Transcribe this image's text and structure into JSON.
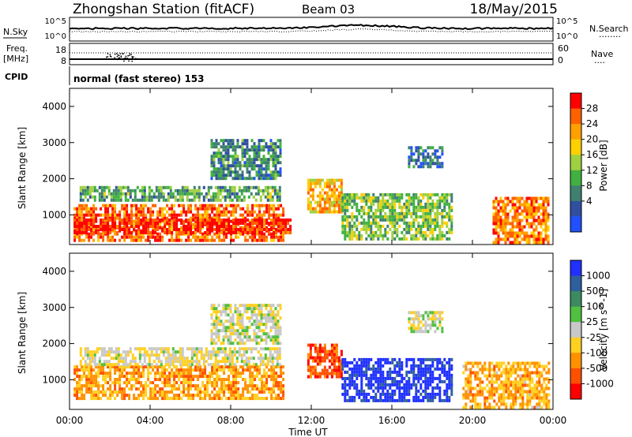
{
  "header": {
    "title": "Zhongshan Station (fitACF)",
    "beam": "Beam 03",
    "date": "18/May/2015"
  },
  "noise_panel": {
    "left_label": "N.Sky",
    "right_label": "N.Search",
    "right_dots": "........",
    "left_ticks": [
      "10^5",
      "10^0"
    ],
    "right_ticks": [
      "10^5",
      "10^0"
    ]
  },
  "freq_panel": {
    "left_label_line1": "Freq.",
    "left_label_line2": "[MHz]",
    "right_label": "Nave",
    "right_dots": "....",
    "left_ticks": [
      "18",
      "8"
    ],
    "right_ticks": [
      "60",
      "0"
    ]
  },
  "cpid_panel": {
    "label": "CPID",
    "text": "normal (fast stereo) 153"
  },
  "range_axis": {
    "label": "Slant Range [km]",
    "ticks": [
      "4000",
      "3000",
      "2000",
      "1000"
    ]
  },
  "time_axis": {
    "label": "Time UT",
    "ticks": [
      "00:00",
      "04:00",
      "08:00",
      "12:00",
      "16:00",
      "20:00",
      "00:00"
    ]
  },
  "power_colorbar": {
    "label": "Power [dB]",
    "ticks": [
      "28",
      "24",
      "20",
      "16",
      "12",
      "8",
      "4"
    ],
    "colors": [
      "#ff0000",
      "#ff6000",
      "#ffa000",
      "#ffd000",
      "#a0d040",
      "#40b040",
      "#408070",
      "#304fa0",
      "#2050ff"
    ]
  },
  "velocity_colorbar": {
    "label": "Velocity [m s^-1]",
    "ticks": [
      "1000",
      "500",
      "100",
      "25",
      "-25",
      "-100",
      "-500",
      "-1000"
    ],
    "colors": [
      "#2030ff",
      "#2e5f9e",
      "#3c8a60",
      "#50c040",
      "#c8c8c8",
      "#ffd020",
      "#ff9000",
      "#ff5000",
      "#ff0000"
    ]
  },
  "chart_data": {
    "type": "heatmap",
    "x_range_hours": [
      0,
      24
    ],
    "y_range_km": [
      180,
      4500
    ],
    "panels": [
      {
        "name": "Power",
        "units": "dB",
        "color_range": [
          0,
          32
        ],
        "regions": [
          {
            "t0": 0.2,
            "t1": 10.6,
            "r0": 300,
            "r1": 1300,
            "value": 26
          },
          {
            "t0": 0.2,
            "t1": 11.0,
            "r0": 500,
            "r1": 900,
            "value": 30
          },
          {
            "t0": 0.5,
            "t1": 10.5,
            "r0": 1400,
            "r1": 1800,
            "value": 12
          },
          {
            "t0": 7.0,
            "t1": 10.5,
            "r0": 2000,
            "r1": 3100,
            "value": 9
          },
          {
            "t0": 11.8,
            "t1": 13.5,
            "r0": 1100,
            "r1": 2000,
            "value": 22
          },
          {
            "t0": 13.5,
            "t1": 19.0,
            "r0": 300,
            "r1": 1600,
            "value": 14
          },
          {
            "t0": 16.8,
            "t1": 18.5,
            "r0": 2300,
            "r1": 2900,
            "value": 7
          },
          {
            "t0": 21.0,
            "t1": 23.8,
            "r0": 200,
            "r1": 1500,
            "value": 25
          }
        ]
      },
      {
        "name": "Velocity",
        "units": "m s^-1",
        "color_range": [
          -1000,
          1000
        ],
        "regions": [
          {
            "t0": 0.2,
            "t1": 10.6,
            "r0": 500,
            "r1": 1400,
            "value": -400
          },
          {
            "t0": 0.5,
            "t1": 10.5,
            "r0": 1400,
            "r1": 1900,
            "value": -80
          },
          {
            "t0": 7.0,
            "t1": 10.5,
            "r0": 2000,
            "r1": 3100,
            "value": -20
          },
          {
            "t0": 11.8,
            "t1": 13.5,
            "r0": 1100,
            "r1": 2000,
            "value": -700
          },
          {
            "t0": 13.5,
            "t1": 19.0,
            "r0": 400,
            "r1": 1600,
            "value": 900
          },
          {
            "t0": 16.8,
            "t1": 18.5,
            "r0": 2300,
            "r1": 2900,
            "value": 0
          },
          {
            "t0": 19.5,
            "t1": 23.8,
            "r0": 200,
            "r1": 1500,
            "value": -350
          }
        ]
      }
    ]
  }
}
